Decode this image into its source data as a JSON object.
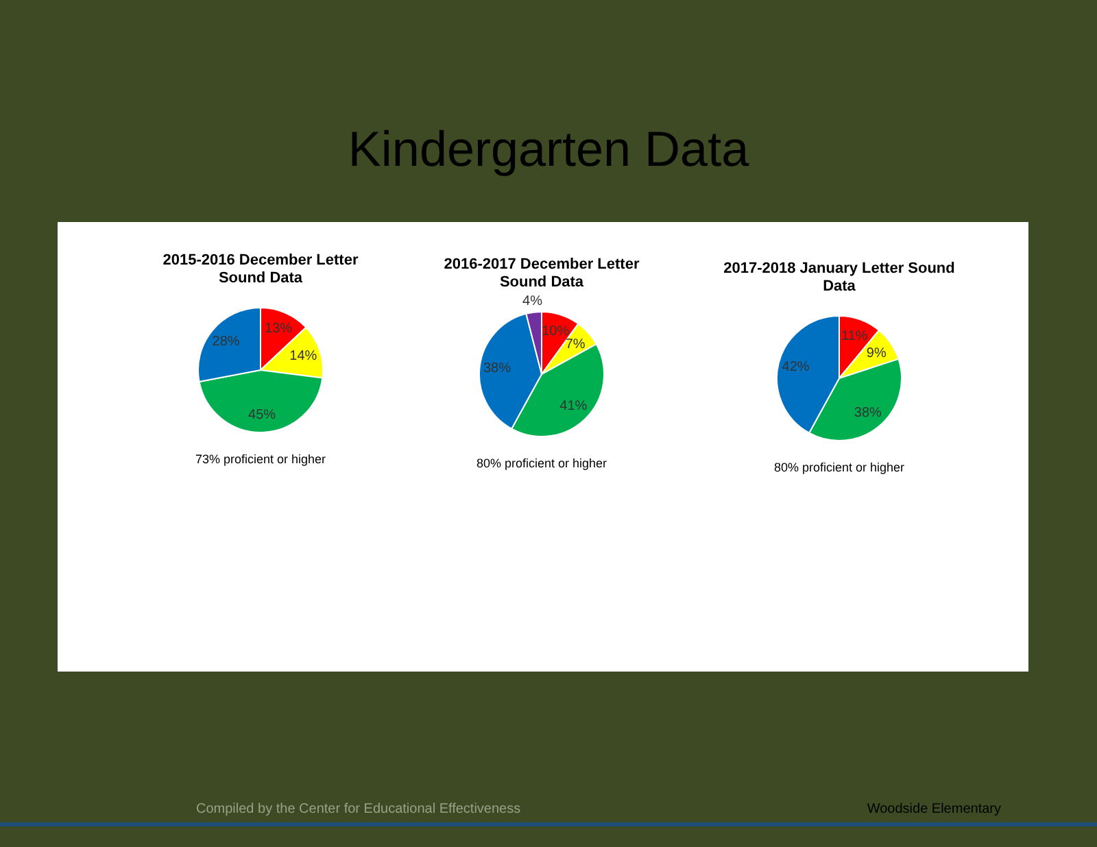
{
  "chart_data": [
    {
      "type": "other",
      "title": "Kindergarten Data",
      "annotations": [
        "Compiled by the Center for Educational Effectiveness",
        "Woodside Elementary"
      ]
    },
    {
      "type": "pie",
      "title": "2015-2016 December Letter Sound Data",
      "categories": [
        null,
        null,
        null,
        null
      ],
      "values": [
        13,
        14,
        45,
        28
      ],
      "colors": [
        "#ff0000",
        "#ffff00",
        "#00b050",
        "#0070c0"
      ],
      "value_labels": [
        "13%",
        "14%",
        "45%",
        "28%"
      ],
      "annotations": [
        "73% proficient or higher"
      ]
    },
    {
      "type": "pie",
      "title": "2016-2017 December Letter Sound Data",
      "categories": [
        null,
        null,
        null,
        null,
        null
      ],
      "values": [
        10,
        7,
        41,
        38,
        4
      ],
      "colors": [
        "#ff0000",
        "#ffff00",
        "#00b050",
        "#0070c0",
        "#7030a0"
      ],
      "value_labels": [
        "10%",
        "7%",
        "41%",
        "38%",
        "4%"
      ],
      "annotations": [
        "80% proficient or higher"
      ]
    },
    {
      "type": "pie",
      "title": "2017-2018 January Letter Sound Data",
      "categories": [
        null,
        null,
        null,
        null
      ],
      "values": [
        11,
        9,
        38,
        42
      ],
      "colors": [
        "#ff0000",
        "#ffff00",
        "#00b050",
        "#0070c0"
      ],
      "value_labels": [
        "11%",
        "9%",
        "38%",
        "42%"
      ],
      "annotations": [
        "80% proficient or higher"
      ]
    }
  ]
}
